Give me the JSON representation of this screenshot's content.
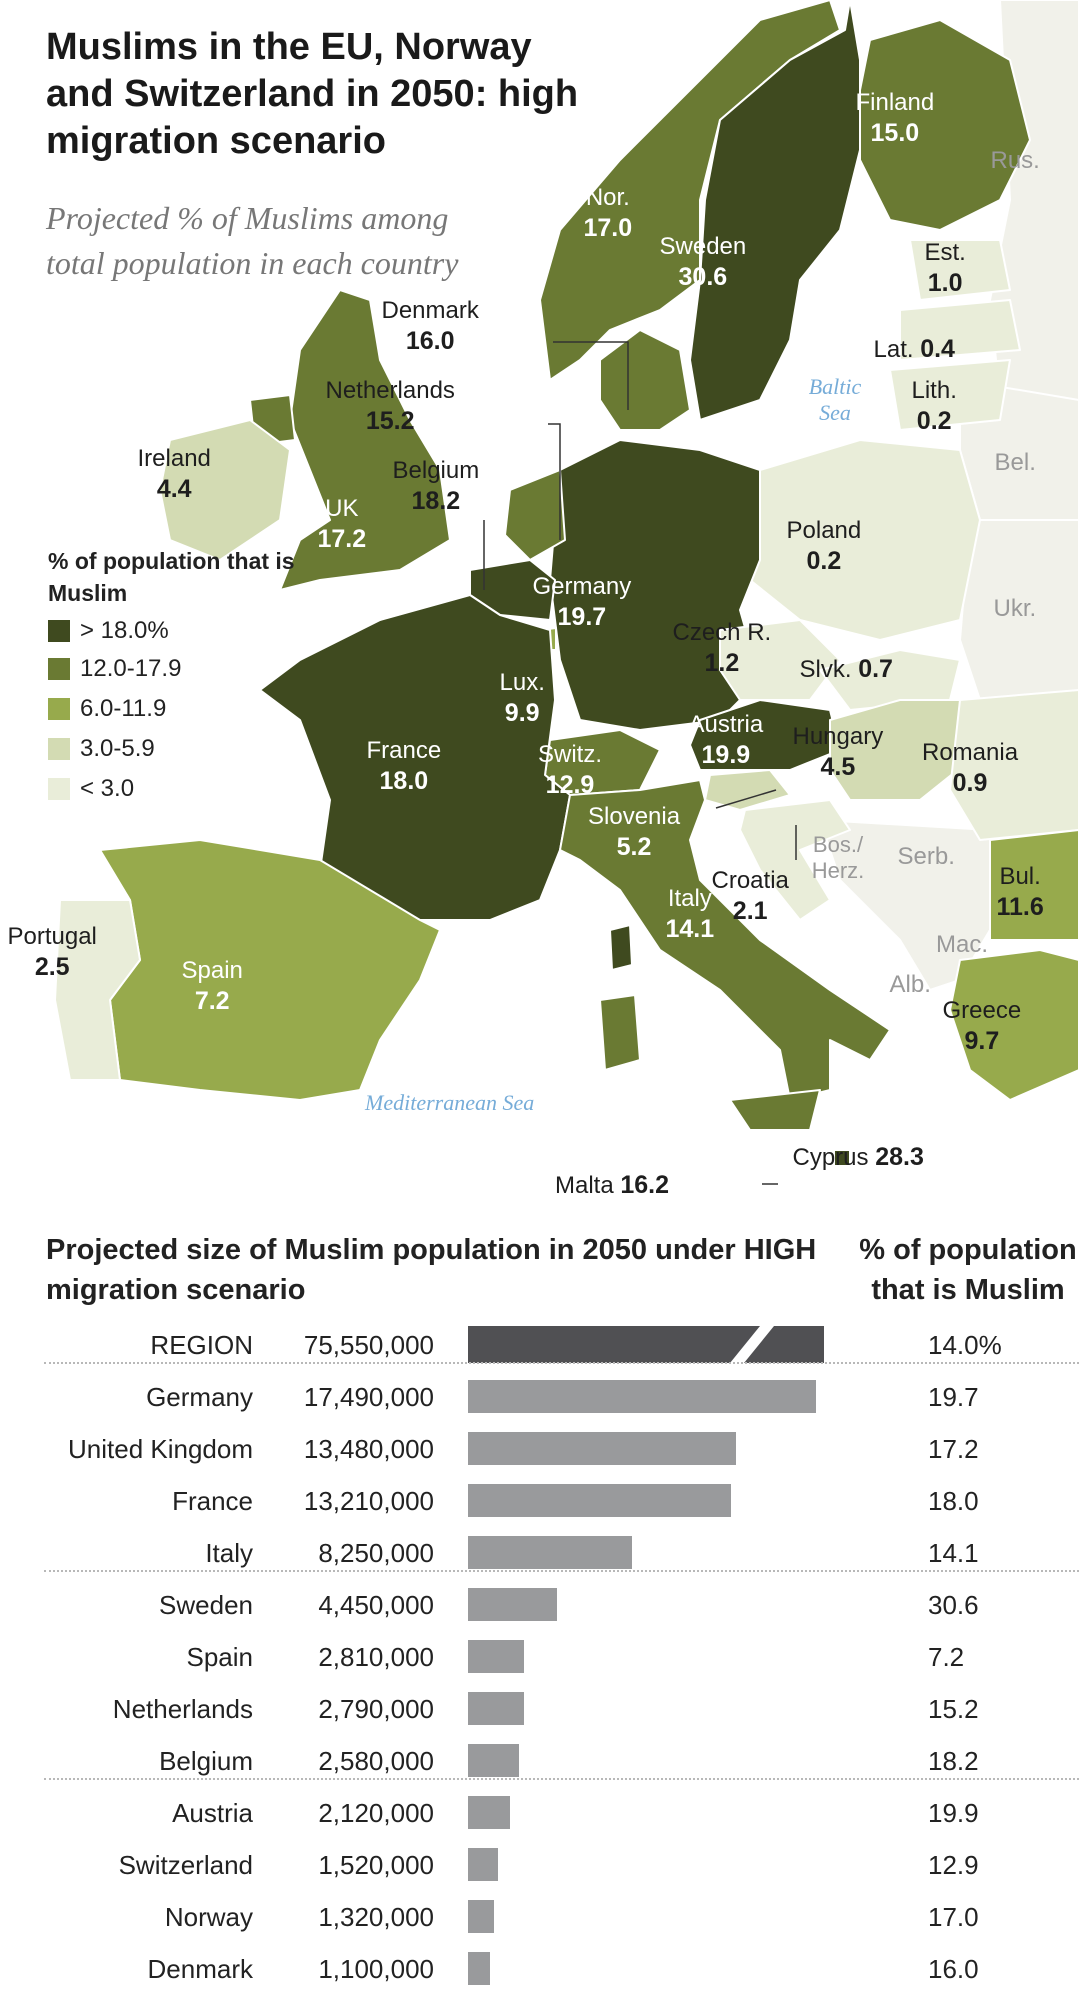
{
  "title": "Muslims in the EU, Norway and Switzerland in 2050: high migration scenario",
  "subtitle": "Projected % of Muslims among total population in each country",
  "legend": {
    "title": "% of population that is Muslim",
    "items": [
      {
        "label": "> 18.0%",
        "color": "#3f4a1f"
      },
      {
        "label": "12.0-17.9",
        "color": "#6a7a33"
      },
      {
        "label": "6.0-11.9",
        "color": "#97aa4c"
      },
      {
        "label": "3.0-5.9",
        "color": "#d3dbb3"
      },
      {
        "label": "< 3.0",
        "color": "#e9edd9"
      }
    ]
  },
  "seas": {
    "baltic": "Baltic Sea",
    "mediterranean": "Mediterranean Sea"
  },
  "countries": [
    {
      "name": "Finland",
      "value": "15.0"
    },
    {
      "name": "Nor.",
      "value": "17.0"
    },
    {
      "name": "Sweden",
      "value": "30.6"
    },
    {
      "name": "Est.",
      "value": "1.0"
    },
    {
      "name": "Lat.",
      "value": "0.4"
    },
    {
      "name": "Lith.",
      "value": "0.2"
    },
    {
      "name": "Denmark",
      "value": "16.0"
    },
    {
      "name": "Netherlands",
      "value": "15.2"
    },
    {
      "name": "Belgium",
      "value": "18.2"
    },
    {
      "name": "Ireland",
      "value": "4.4"
    },
    {
      "name": "UK",
      "value": "17.2"
    },
    {
      "name": "Poland",
      "value": "0.2"
    },
    {
      "name": "Germany",
      "value": "19.7"
    },
    {
      "name": "Czech R.",
      "value": "1.2"
    },
    {
      "name": "Slvk.",
      "value": "0.7"
    },
    {
      "name": "Lux.",
      "value": "9.9"
    },
    {
      "name": "Austria",
      "value": "19.9"
    },
    {
      "name": "Hungary",
      "value": "4.5"
    },
    {
      "name": "Romania",
      "value": "0.9"
    },
    {
      "name": "France",
      "value": "18.0"
    },
    {
      "name": "Switz.",
      "value": "12.9"
    },
    {
      "name": "Slovenia",
      "value": "5.2"
    },
    {
      "name": "Croatia",
      "value": "2.1"
    },
    {
      "name": "Italy",
      "value": "14.1"
    },
    {
      "name": "Portugal",
      "value": "2.5"
    },
    {
      "name": "Spain",
      "value": "7.2"
    },
    {
      "name": "Bul.",
      "value": "11.6"
    },
    {
      "name": "Greece",
      "value": "9.7"
    },
    {
      "name": "Cyprus",
      "value": "28.3"
    },
    {
      "name": "Malta",
      "value": "16.2"
    }
  ],
  "non_eu_labels": [
    "Rus.",
    "Bel.",
    "Ukr.",
    "Bos./ Herz.",
    "Serb.",
    "Mac.",
    "Alb."
  ],
  "bar_chart": {
    "title": "Projected size of Muslim population in 2050 under HIGH migration scenario",
    "pct_header": "% of population that is Muslim",
    "region": {
      "name": "REGION",
      "population": "75,550,000",
      "pct": "14.0%"
    },
    "rows": [
      {
        "name": "Germany",
        "population": "17,490,000",
        "value": 17490000,
        "pct": "19.7"
      },
      {
        "name": "United Kingdom",
        "population": "13,480,000",
        "value": 13480000,
        "pct": "17.2"
      },
      {
        "name": "France",
        "population": "13,210,000",
        "value": 13210000,
        "pct": "18.0"
      },
      {
        "name": "Italy",
        "population": "8,250,000",
        "value": 8250000,
        "pct": "14.1"
      },
      {
        "name": "Sweden",
        "population": "4,450,000",
        "value": 4450000,
        "pct": "30.6"
      },
      {
        "name": "Spain",
        "population": "2,810,000",
        "value": 2810000,
        "pct": "7.2"
      },
      {
        "name": "Netherlands",
        "population": "2,790,000",
        "value": 2790000,
        "pct": "15.2"
      },
      {
        "name": "Belgium",
        "population": "2,580,000",
        "value": 2580000,
        "pct": "18.2"
      },
      {
        "name": "Austria",
        "population": "2,120,000",
        "value": 2120000,
        "pct": "19.9"
      },
      {
        "name": "Switzerland",
        "population": "1,520,000",
        "value": 1520000,
        "pct": "12.9"
      },
      {
        "name": "Norway",
        "population": "1,320,000",
        "value": 1320000,
        "pct": "17.0"
      },
      {
        "name": "Denmark",
        "population": "1,100,000",
        "value": 1100000,
        "pct": "16.0"
      }
    ]
  },
  "chart_data": {
    "type": "bar",
    "title": "Projected size of Muslim population in 2050 under HIGH migration scenario",
    "categories": [
      "Germany",
      "United Kingdom",
      "France",
      "Italy",
      "Sweden",
      "Spain",
      "Netherlands",
      "Belgium",
      "Austria",
      "Switzerland",
      "Norway",
      "Denmark"
    ],
    "values": [
      17490000,
      13480000,
      13210000,
      8250000,
      4450000,
      2810000,
      2790000,
      2580000,
      2120000,
      1520000,
      1320000,
      1100000
    ],
    "xlabel": "",
    "ylabel": ""
  }
}
